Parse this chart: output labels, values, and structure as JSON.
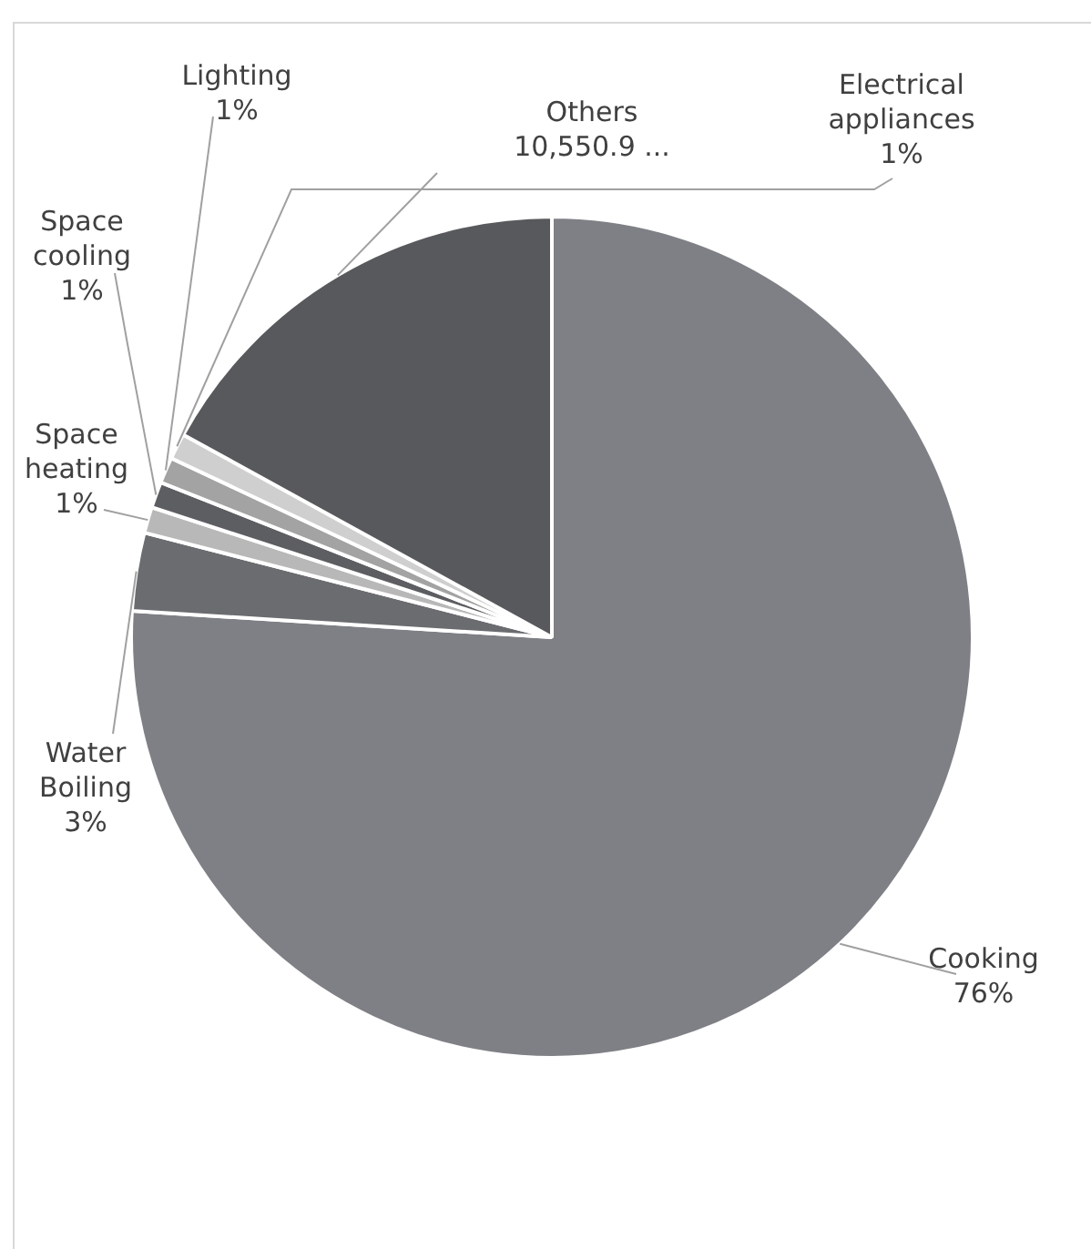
{
  "chart_data": {
    "type": "pie",
    "categories": [
      "Cooking",
      "Water Boiling",
      "Space heating",
      "Space cooling",
      "Lighting",
      "Electrical appliances",
      "Others"
    ],
    "values": [
      76,
      3,
      1,
      1,
      1,
      1,
      17
    ],
    "value_labels": [
      "76%",
      "3%",
      "1%",
      "1%",
      "1%",
      "1%",
      "10,550.9 ..."
    ],
    "colors": [
      "#7f8085",
      "#6b6c70",
      "#b8b8b8",
      "#5d5e62",
      "#a3a3a3",
      "#cfcfcf",
      "#58595c"
    ],
    "legend": false
  }
}
